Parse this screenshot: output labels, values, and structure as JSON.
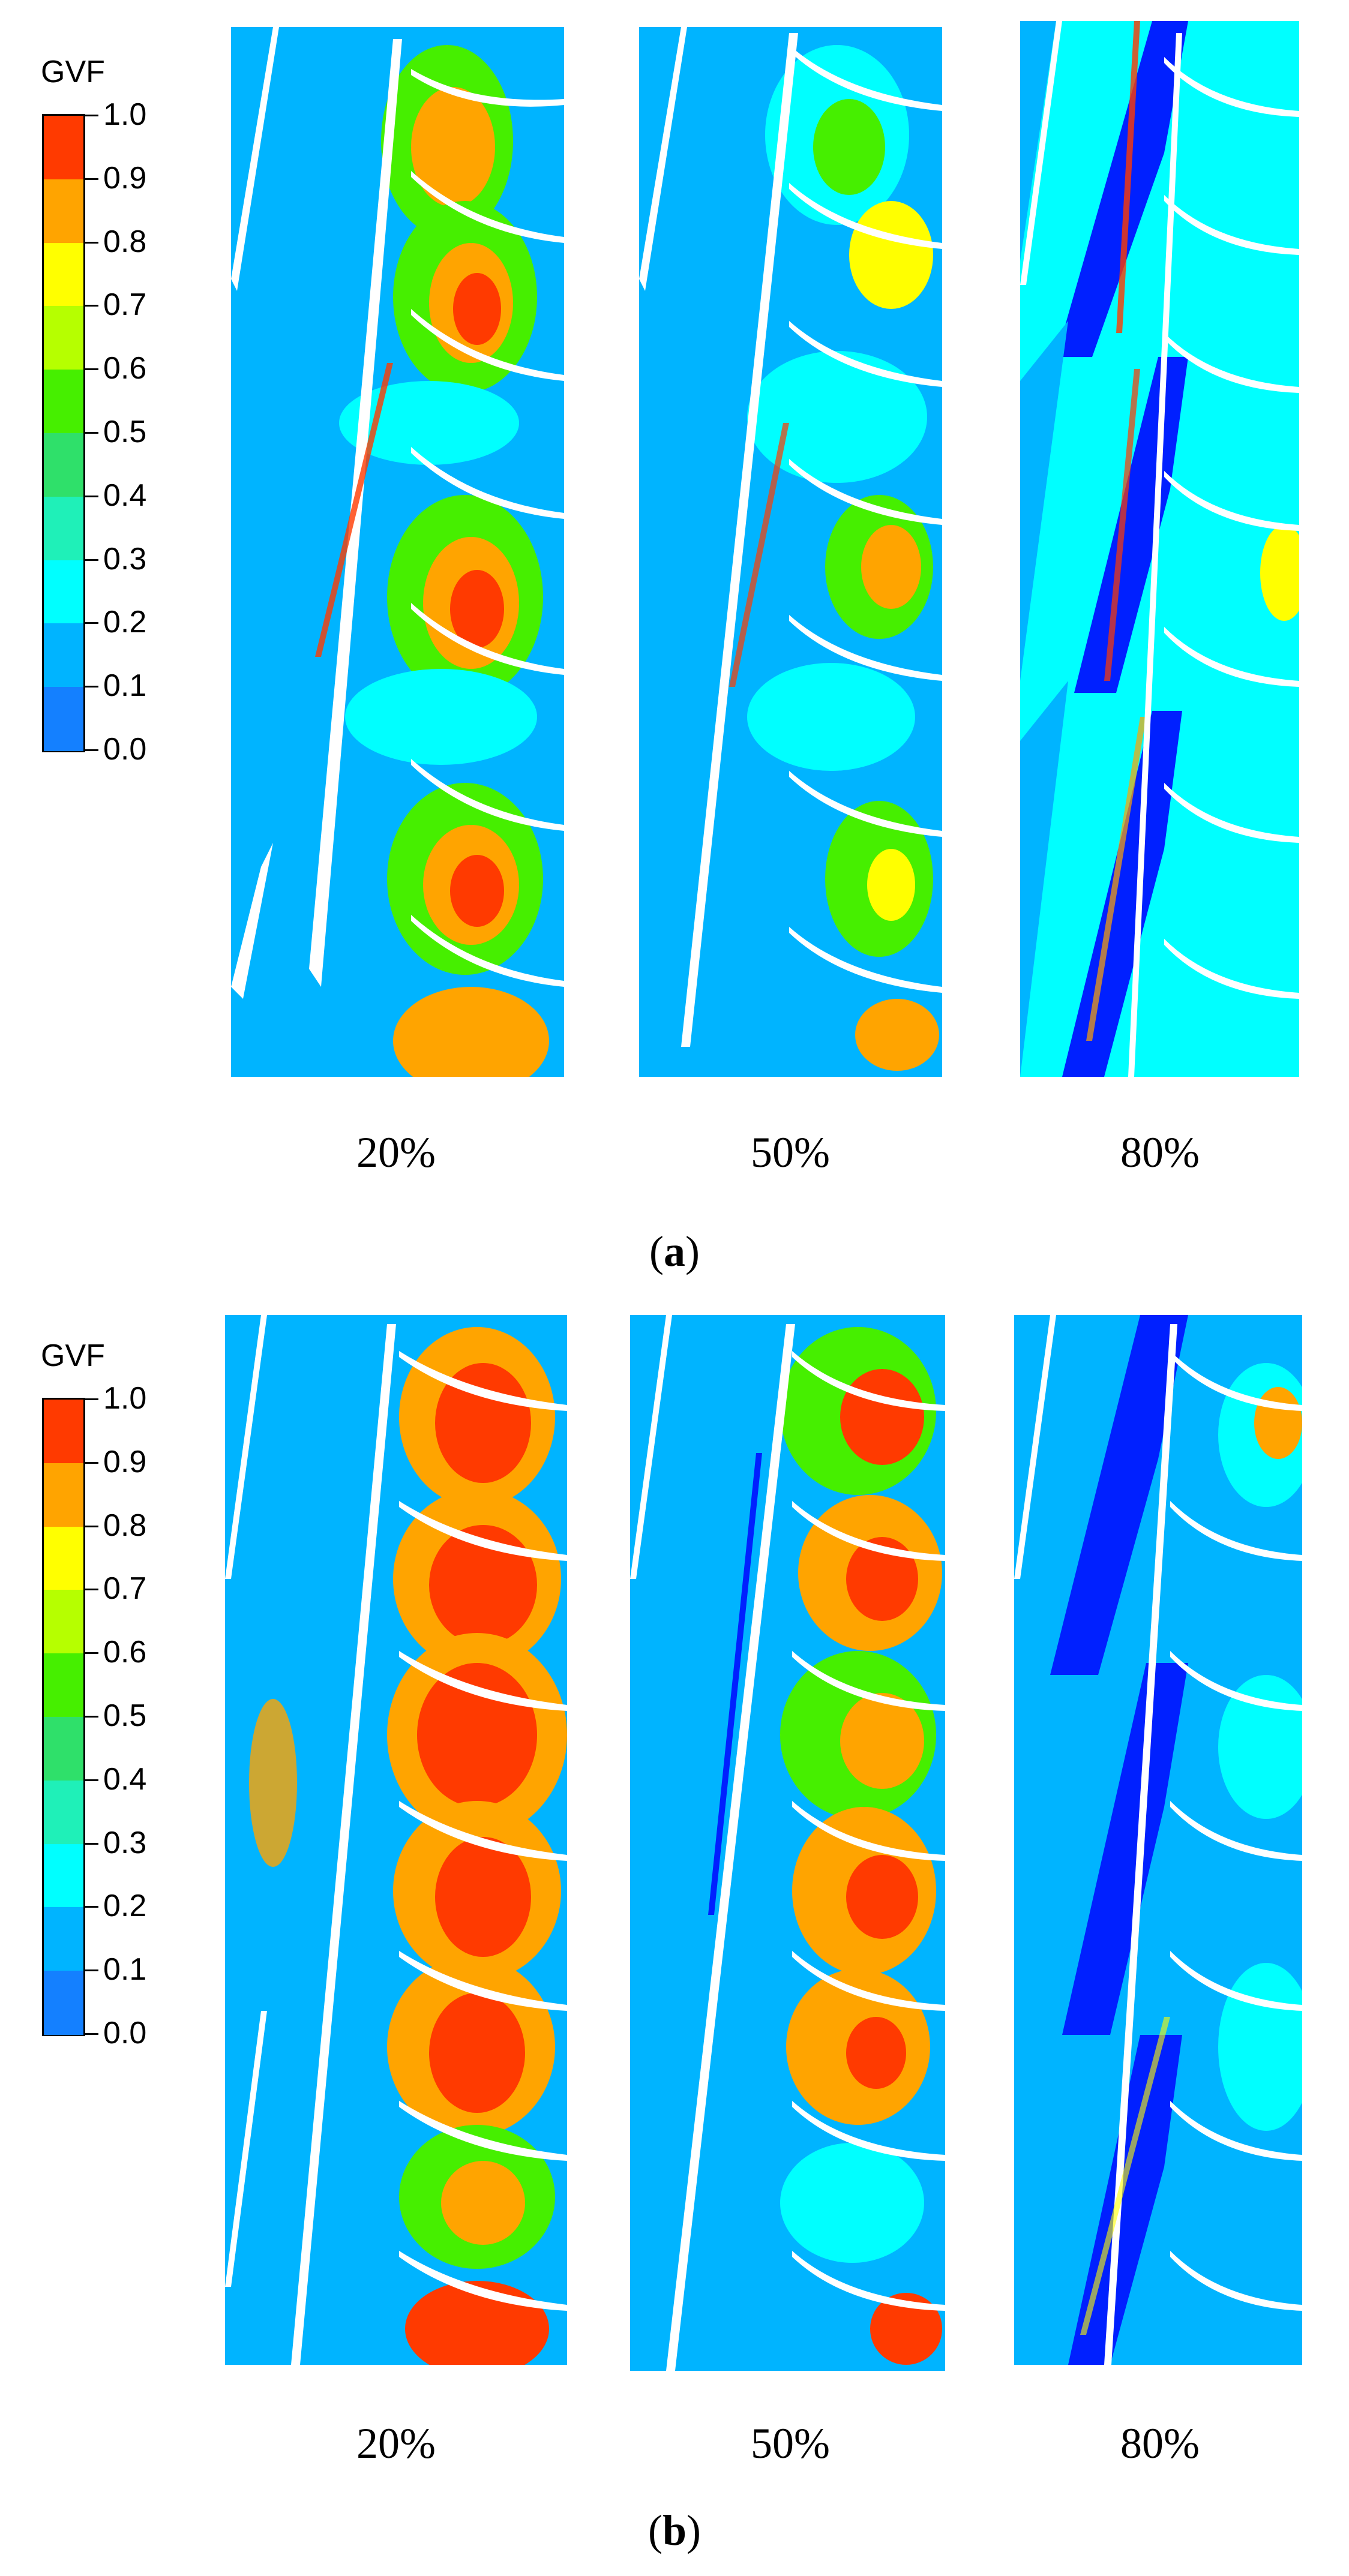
{
  "colorbar": {
    "title": "GVF",
    "ticks": [
      "1.0",
      "0.9",
      "0.8",
      "0.7",
      "0.6",
      "0.5",
      "0.4",
      "0.3",
      "0.2",
      "0.1",
      "0.0"
    ],
    "colors": [
      "#ff3a00",
      "#ffa400",
      "#ffff00",
      "#b6ff00",
      "#46ef00",
      "#2fe06a",
      "#1ff0b8",
      "#00ffff",
      "#00b4ff",
      "#1480ff",
      "#0020ff"
    ]
  },
  "panel_a": {
    "label_open": "(",
    "label_letter": "a",
    "label_close": ")",
    "captions": [
      "20%",
      "50%",
      "80%"
    ]
  },
  "panel_b": {
    "label_open": "(",
    "label_letter": "b",
    "label_close": ")",
    "captions": [
      "20%",
      "50%",
      "80%"
    ]
  },
  "contour_colors": {
    "background": "#00b4ff",
    "cyan": "#00ffff",
    "deep_blue": "#0020ff",
    "green": "#46ef00",
    "yellow": "#ffff00",
    "orange": "#ffa400",
    "red": "#ff3a00",
    "blade": "#ffffff"
  }
}
